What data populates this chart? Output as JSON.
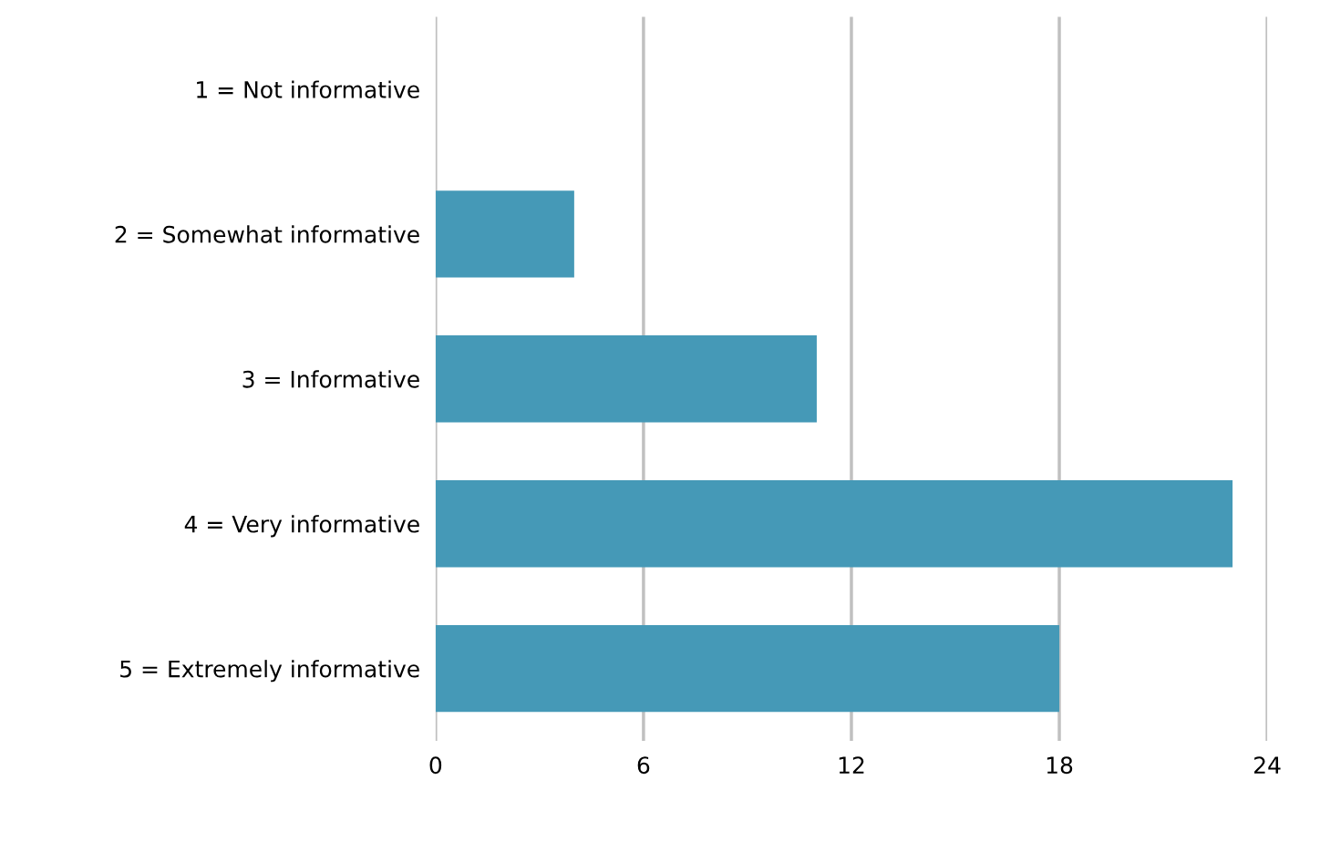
{
  "chart_data": {
    "type": "bar",
    "orientation": "horizontal",
    "categories": [
      "1 = Not informative",
      "2 = Somewhat informative",
      "3 = Informative",
      "4 = Very informative",
      "5 = Extremely informative"
    ],
    "values": [
      0,
      4,
      11,
      23,
      18
    ],
    "color": "#4599b7",
    "xlim": [
      0,
      24
    ],
    "xticks": [
      0,
      6,
      12,
      18,
      24
    ],
    "grid": "x"
  }
}
